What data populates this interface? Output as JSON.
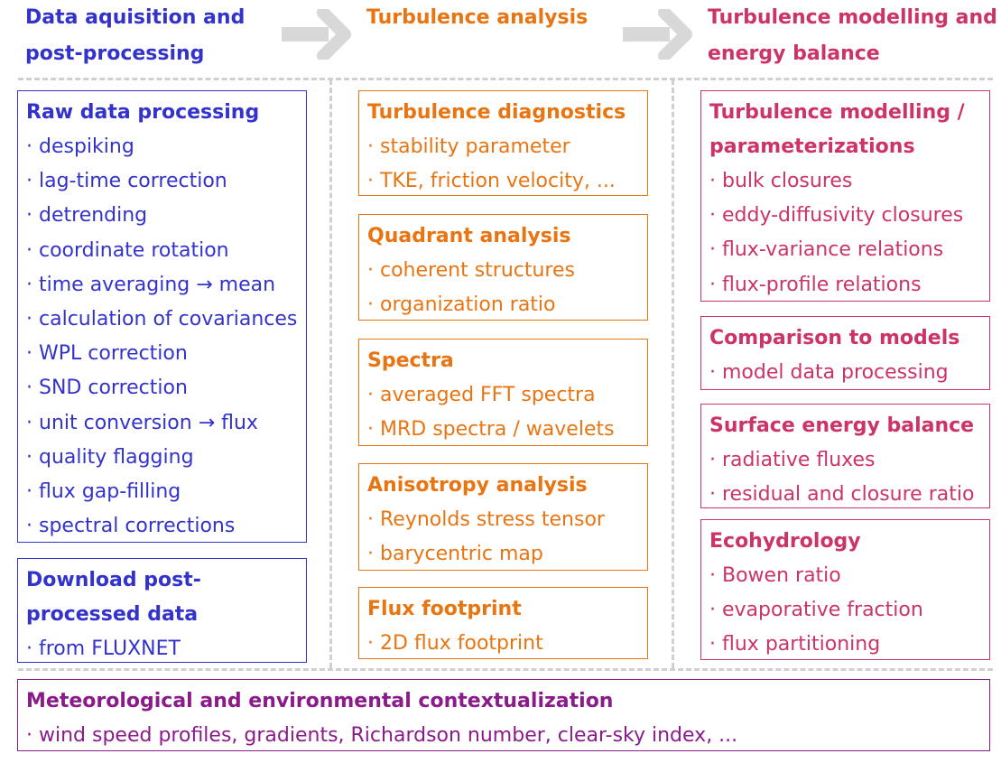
{
  "columns": {
    "acquisition": {
      "header": [
        "Data aquisition and",
        "post-processing"
      ],
      "boxes": [
        {
          "title": [
            "Raw data processing"
          ],
          "items": [
            "despiking",
            "lag-time correction",
            "detrending",
            "coordinate rotation",
            "time averaging → mean",
            "calculation of covariances",
            "WPL correction",
            "SND correction",
            "unit conversion → flux",
            "quality flagging",
            "flux gap-filling",
            "spectral corrections"
          ]
        },
        {
          "title": [
            "Download post-",
            "processed data"
          ],
          "items": [
            "from FLUXNET"
          ]
        }
      ]
    },
    "turbulence": {
      "header": [
        "Turbulence analysis"
      ],
      "boxes": [
        {
          "title": [
            "Turbulence diagnostics"
          ],
          "items": [
            "stability parameter",
            "TKE, friction velocity, ..."
          ]
        },
        {
          "title": [
            "Quadrant analysis"
          ],
          "items": [
            "coherent structures",
            "organization ratio"
          ]
        },
        {
          "title": [
            "Spectra"
          ],
          "items": [
            "averaged FFT spectra",
            "MRD spectra / wavelets"
          ]
        },
        {
          "title": [
            "Anisotropy analysis"
          ],
          "items": [
            "Reynolds stress tensor",
            "barycentric map"
          ]
        },
        {
          "title": [
            "Flux footprint"
          ],
          "items": [
            "2D flux footprint"
          ]
        }
      ]
    },
    "modelling": {
      "header": [
        "Turbulence modelling and",
        "energy balance"
      ],
      "boxes": [
        {
          "title": [
            "Turbulence modelling /",
            "parameterizations"
          ],
          "items": [
            "bulk closures",
            "eddy-diffusivity closures",
            "flux-variance relations",
            "flux-profile relations"
          ]
        },
        {
          "title": [
            "Comparison to models"
          ],
          "items": [
            "model data processing"
          ]
        },
        {
          "title": [
            "Surface energy balance"
          ],
          "items": [
            "radiative fluxes",
            "residual and closure ratio"
          ]
        },
        {
          "title": [
            "Ecohydrology"
          ],
          "items": [
            "Bowen ratio",
            "evaporative fraction",
            "flux partitioning"
          ]
        }
      ]
    }
  },
  "context": {
    "title": "Meteorological and environmental contextualization",
    "items": [
      "wind speed profiles, gradients, Richardson number, clear-sky index, ..."
    ]
  },
  "colors": {
    "acquisition": "#3333cc",
    "turbulence": "#e87511",
    "modelling": "#cc3366",
    "context": "#8b1a8b",
    "divider": "#d0d0d0"
  }
}
